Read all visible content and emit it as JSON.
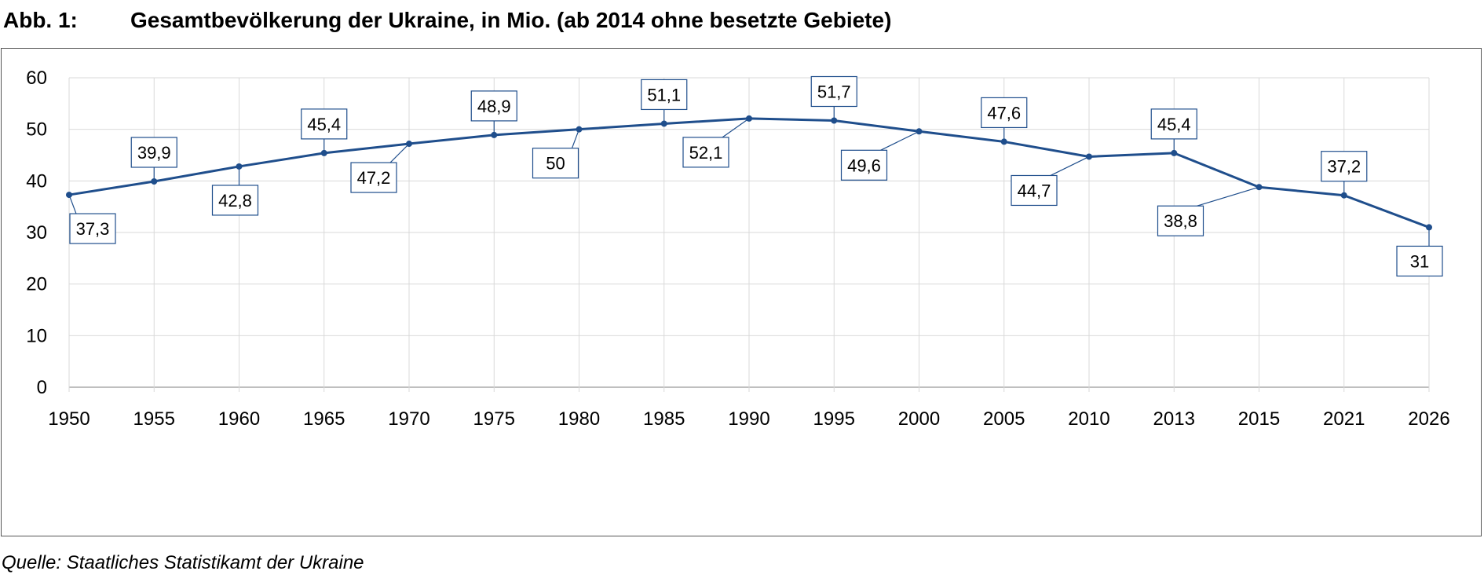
{
  "figure": {
    "number": "Abb. 1:",
    "title": "Gesamtbevölkerung der Ukraine, in Mio. (ab 2014 ohne besetzte Gebiete)",
    "source": "Quelle: Staatliches Statistikamt der Ukraine"
  },
  "colors": {
    "line": "#1f4e8c",
    "grid": "#d9d9d9",
    "axis": "#bfbfbf",
    "label_border": "#1f4e8c"
  },
  "chart_data": {
    "type": "line",
    "categories": [
      "1950",
      "1955",
      "1960",
      "1965",
      "1970",
      "1975",
      "1980",
      "1985",
      "1990",
      "1995",
      "2000",
      "2005",
      "2010",
      "2013",
      "2015",
      "2021",
      "2026"
    ],
    "values": [
      37.3,
      39.9,
      42.8,
      45.4,
      47.2,
      48.9,
      50,
      51.1,
      52.1,
      51.7,
      49.6,
      47.6,
      44.7,
      45.4,
      38.8,
      37.2,
      31
    ],
    "data_labels": [
      "37,3",
      "39,9",
      "42,8",
      "45,4",
      "47,2",
      "48,9",
      "50",
      "51,1",
      "52,1",
      "51,7",
      "49,6",
      "47,6",
      "44,7",
      "45,4",
      "38,8",
      "37,2",
      "31"
    ],
    "y_ticks": [
      "0",
      "10",
      "20",
      "30",
      "40",
      "50",
      "60"
    ],
    "ylim": [
      0,
      60
    ],
    "grid": true,
    "legend": "none",
    "xlabel": "",
    "ylabel": ""
  }
}
